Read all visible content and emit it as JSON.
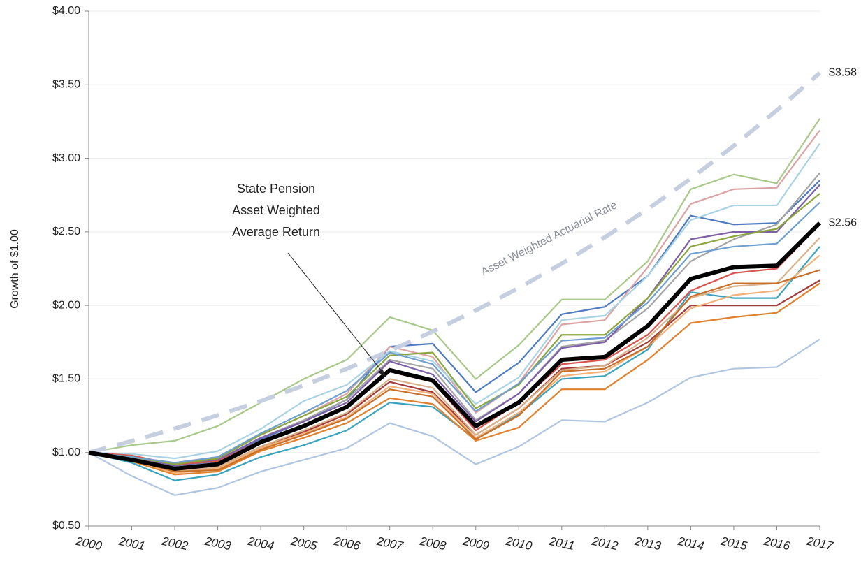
{
  "chart_data": {
    "type": "line",
    "y_label": "Growth of $1.00",
    "categories": [
      "2000",
      "2001",
      "2002",
      "2003",
      "2004",
      "2005",
      "2006",
      "2007",
      "2008",
      "2009",
      "2010",
      "2011",
      "2012",
      "2013",
      "2014",
      "2015",
      "2016",
      "2017"
    ],
    "ylim": [
      0.5,
      4.0
    ],
    "yticks": [
      {
        "value": 0.5,
        "label": "$0.50"
      },
      {
        "value": 1.0,
        "label": "$1.00"
      },
      {
        "value": 1.5,
        "label": "$1.50"
      },
      {
        "value": 2.0,
        "label": "$2.00"
      },
      {
        "value": 2.5,
        "label": "$2.50"
      },
      {
        "value": 3.0,
        "label": "$3.00"
      },
      {
        "value": 3.5,
        "label": "$3.50"
      },
      {
        "value": 4.0,
        "label": "$4.00"
      }
    ],
    "grid": true,
    "annotations": [
      {
        "lines": [
          "State Pension",
          "Asset Weighted",
          "Average Return"
        ]
      },
      {
        "text": "Asset Weighted Actuarial Rate"
      }
    ],
    "series": [
      {
        "color": "#a8c98a",
        "values": [
          1.0,
          1.05,
          1.08,
          1.18,
          1.34,
          1.5,
          1.63,
          1.92,
          1.83,
          1.5,
          1.73,
          2.04,
          2.04,
          2.3,
          2.79,
          2.89,
          2.83,
          3.27
        ]
      },
      {
        "color": "#b0c6e0",
        "values": [
          1.0,
          0.84,
          0.71,
          0.76,
          0.87,
          0.95,
          1.03,
          1.2,
          1.11,
          0.92,
          1.04,
          1.22,
          1.21,
          1.34,
          1.51,
          1.57,
          1.58,
          1.77
        ]
      },
      {
        "color": "#4f7bbf",
        "values": [
          1.0,
          0.96,
          0.91,
          0.94,
          1.09,
          1.21,
          1.36,
          1.72,
          1.74,
          1.41,
          1.61,
          1.94,
          1.99,
          2.2,
          2.61,
          2.55,
          2.56,
          2.85
        ]
      },
      {
        "color": "#3ba3bd",
        "values": [
          1.0,
          0.93,
          0.81,
          0.85,
          0.97,
          1.05,
          1.15,
          1.34,
          1.31,
          1.09,
          1.26,
          1.5,
          1.52,
          1.7,
          2.09,
          2.05,
          2.05,
          2.4
        ]
      },
      {
        "color": "#e0812d",
        "values": [
          1.0,
          0.94,
          0.85,
          0.87,
          1.01,
          1.1,
          1.2,
          1.37,
          1.33,
          1.08,
          1.17,
          1.43,
          1.43,
          1.63,
          1.88,
          1.92,
          1.95,
          2.15
        ]
      },
      {
        "color": "#dba3a3",
        "values": [
          1.0,
          0.97,
          0.93,
          0.97,
          1.12,
          1.25,
          1.4,
          1.72,
          1.65,
          1.27,
          1.47,
          1.87,
          1.9,
          2.26,
          2.69,
          2.79,
          2.8,
          3.19
        ]
      },
      {
        "color": "#a9d3e3",
        "values": [
          1.0,
          0.99,
          0.96,
          1.01,
          1.16,
          1.35,
          1.46,
          1.69,
          1.62,
          1.33,
          1.51,
          1.9,
          1.93,
          2.2,
          2.58,
          2.68,
          2.68,
          3.1
        ]
      },
      {
        "color": "#a5a5a5",
        "values": [
          1.0,
          0.97,
          0.92,
          0.95,
          1.1,
          1.22,
          1.36,
          1.63,
          1.57,
          1.22,
          1.4,
          1.72,
          1.76,
          1.98,
          2.3,
          2.45,
          2.55,
          2.9
        ]
      },
      {
        "color": "#7e5fa8",
        "values": [
          1.0,
          0.96,
          0.91,
          0.95,
          1.1,
          1.21,
          1.34,
          1.62,
          1.53,
          1.21,
          1.4,
          1.71,
          1.75,
          2.05,
          2.45,
          2.5,
          2.5,
          2.82
        ]
      },
      {
        "color": "#d9534f",
        "values": [
          1.0,
          0.98,
          0.92,
          0.94,
          1.08,
          1.18,
          1.3,
          1.55,
          1.48,
          1.15,
          1.34,
          1.6,
          1.63,
          1.8,
          2.1,
          2.22,
          2.25,
          2.55
        ]
      },
      {
        "color": "#a33a3a",
        "values": [
          1.0,
          0.96,
          0.88,
          0.9,
          1.04,
          1.14,
          1.26,
          1.48,
          1.41,
          1.12,
          1.3,
          1.57,
          1.59,
          1.75,
          2.0,
          2.0,
          2.0,
          2.17
        ]
      },
      {
        "color": "#8aa63d",
        "values": [
          1.0,
          0.97,
          0.92,
          0.96,
          1.12,
          1.25,
          1.38,
          1.66,
          1.68,
          1.3,
          1.46,
          1.8,
          1.8,
          2.05,
          2.4,
          2.47,
          2.52,
          2.76
        ]
      },
      {
        "color": "#d9b38c",
        "values": [
          1.0,
          0.95,
          0.87,
          0.9,
          1.04,
          1.15,
          1.27,
          1.5,
          1.44,
          1.12,
          1.3,
          1.56,
          1.59,
          1.78,
          2.05,
          2.13,
          2.15,
          2.46
        ]
      },
      {
        "color": "#f2b27a",
        "values": [
          1.0,
          0.95,
          0.86,
          0.89,
          1.03,
          1.13,
          1.24,
          1.45,
          1.4,
          1.1,
          1.27,
          1.52,
          1.55,
          1.72,
          1.98,
          2.07,
          2.1,
          2.34
        ]
      },
      {
        "color": "#c8702a",
        "values": [
          1.0,
          0.95,
          0.87,
          0.88,
          1.02,
          1.12,
          1.23,
          1.43,
          1.38,
          1.09,
          1.25,
          1.55,
          1.57,
          1.72,
          2.06,
          2.15,
          2.15,
          2.24
        ]
      },
      {
        "color": "#6f9fcf",
        "values": [
          1.0,
          0.97,
          0.93,
          0.97,
          1.13,
          1.27,
          1.42,
          1.68,
          1.6,
          1.28,
          1.47,
          1.76,
          1.78,
          2.02,
          2.35,
          2.4,
          2.42,
          2.7
        ]
      },
      {
        "color": "#c5cfe0",
        "line_style": "dashed",
        "values": [
          1.0,
          1.078,
          1.162,
          1.253,
          1.35,
          1.456,
          1.569,
          1.692,
          1.823,
          1.966,
          2.119,
          2.284,
          2.463,
          2.655,
          2.862,
          3.085,
          3.326,
          3.58
        ],
        "value_labels": [
          null,
          null,
          null,
          null,
          null,
          null,
          null,
          null,
          null,
          null,
          null,
          null,
          null,
          null,
          null,
          null,
          null,
          "$3.58"
        ]
      },
      {
        "color": "#000000",
        "line_style": "bold",
        "values": [
          1.0,
          0.95,
          0.89,
          0.92,
          1.07,
          1.18,
          1.31,
          1.56,
          1.49,
          1.18,
          1.34,
          1.63,
          1.65,
          1.86,
          2.18,
          2.26,
          2.27,
          2.56
        ],
        "value_labels": [
          null,
          null,
          null,
          null,
          null,
          null,
          null,
          null,
          null,
          null,
          null,
          null,
          null,
          null,
          null,
          null,
          null,
          "$2.56"
        ]
      }
    ]
  }
}
